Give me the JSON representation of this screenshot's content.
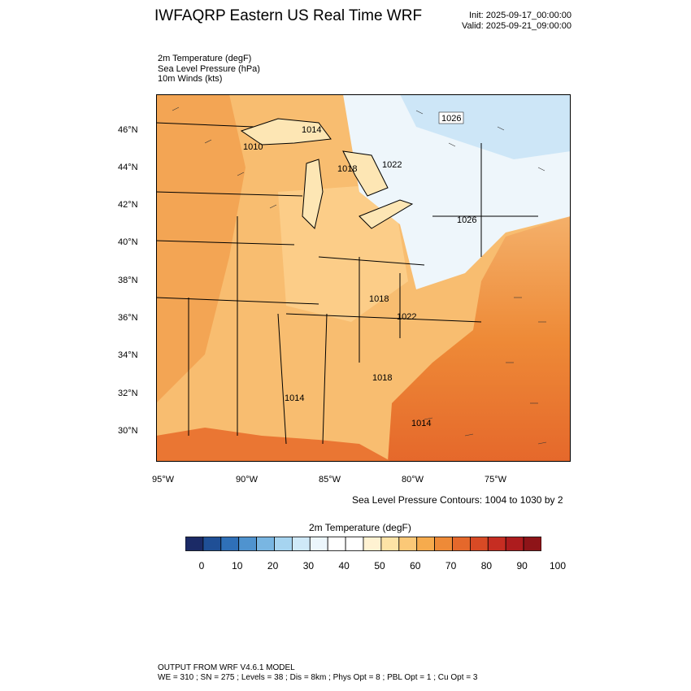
{
  "title": "IWFAQRP Eastern US Real Time WRF",
  "init": "Init: 2025-09-17_00:00:00",
  "valid": "Valid: 2025-09-21_09:00:00",
  "fields": {
    "temp": "2m Temperature   (degF)",
    "slp": "Sea Level Pressure   (hPa)",
    "winds": "10m Winds   (kts)"
  },
  "map": {
    "lat_labels": [
      "46°N",
      "44°N",
      "42°N",
      "40°N",
      "38°N",
      "36°N",
      "34°N",
      "32°N",
      "30°N"
    ],
    "lon_labels": [
      "95°W",
      "90°W",
      "85°W",
      "80°W",
      "75°W"
    ],
    "pressure_labels": [
      "1026",
      "1014",
      "1010",
      "1018",
      "1022",
      "1026",
      "1018",
      "1022",
      "1018",
      "1014",
      "1014"
    ]
  },
  "contour_note": "Sea Level Pressure Contours: 1004 to 1030 by 2",
  "colorbar": {
    "title": "2m Temperature  (degF)",
    "ticks": [
      "0",
      "10",
      "20",
      "30",
      "40",
      "50",
      "60",
      "70",
      "80",
      "90",
      "100"
    ],
    "colors": [
      "#1b2a66",
      "#1f4f96",
      "#2f70b8",
      "#4f93cf",
      "#79b6e2",
      "#a6d4f0",
      "#cfe9f8",
      "#ecf6fc",
      "#ffffff",
      "#ffffff",
      "#fff2d2",
      "#fde3a6",
      "#fbc877",
      "#f6ab4d",
      "#ee8a37",
      "#e5682b",
      "#d84a25",
      "#c62d22",
      "#ad1c1e",
      "#8e1418"
    ]
  },
  "footer": {
    "line1": "OUTPUT FROM WRF V4.6.1 MODEL",
    "line2": "WE = 310 ; SN = 275 ; Levels = 38 ; Dis = 8km ; Phys Opt = 8 ; PBL Opt = 1 ; Cu Opt = 3"
  }
}
